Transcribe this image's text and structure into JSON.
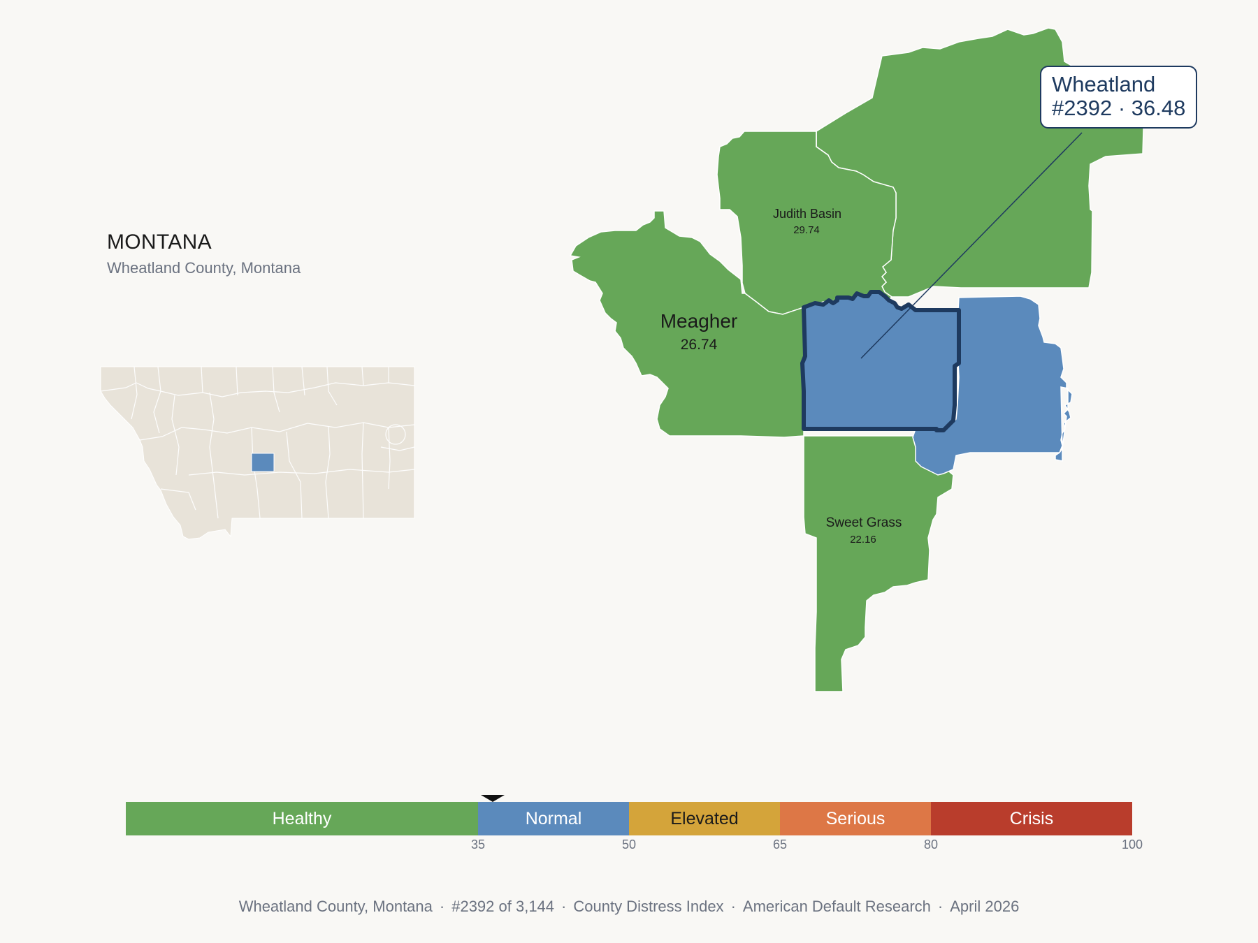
{
  "header": {
    "state": "MONTANA",
    "subtitle": "Wheatland County, Montana"
  },
  "colors": {
    "healthy": "#66a758",
    "normal": "#5b8abc",
    "elevated": "#d4a43a",
    "serious": "#dd7746",
    "crisis": "#b93d2c",
    "highlight_outline": "#1e3a5f",
    "inset_fill": "#e8e3d9"
  },
  "counties": [
    {
      "name": "Meagher",
      "value": "26.74",
      "category": "healthy"
    },
    {
      "name": "Judith Basin",
      "value": "29.74",
      "category": "healthy"
    },
    {
      "name": "Sweet Grass",
      "value": "22.16",
      "category": "healthy"
    },
    {
      "name": "Wheatland",
      "value": "36.48",
      "category": "normal",
      "selected": true
    }
  ],
  "callout": {
    "line1": "Wheatland",
    "line2": "#2392 · 36.48"
  },
  "legend": {
    "segments": [
      {
        "label": "Healthy",
        "from": 0,
        "to": 35
      },
      {
        "label": "Normal",
        "from": 35,
        "to": 50
      },
      {
        "label": "Elevated",
        "from": 50,
        "to": 65
      },
      {
        "label": "Serious",
        "from": 65,
        "to": 80
      },
      {
        "label": "Crisis",
        "from": 80,
        "to": 100
      }
    ],
    "ticks": [
      "35",
      "50",
      "65",
      "80",
      "100"
    ],
    "marker_value": 36.48
  },
  "footer": {
    "county": "Wheatland County, Montana",
    "rank": "#2392 of 3,144",
    "index": "County Distress Index",
    "source": "American Default Research",
    "date": "April 2026"
  }
}
